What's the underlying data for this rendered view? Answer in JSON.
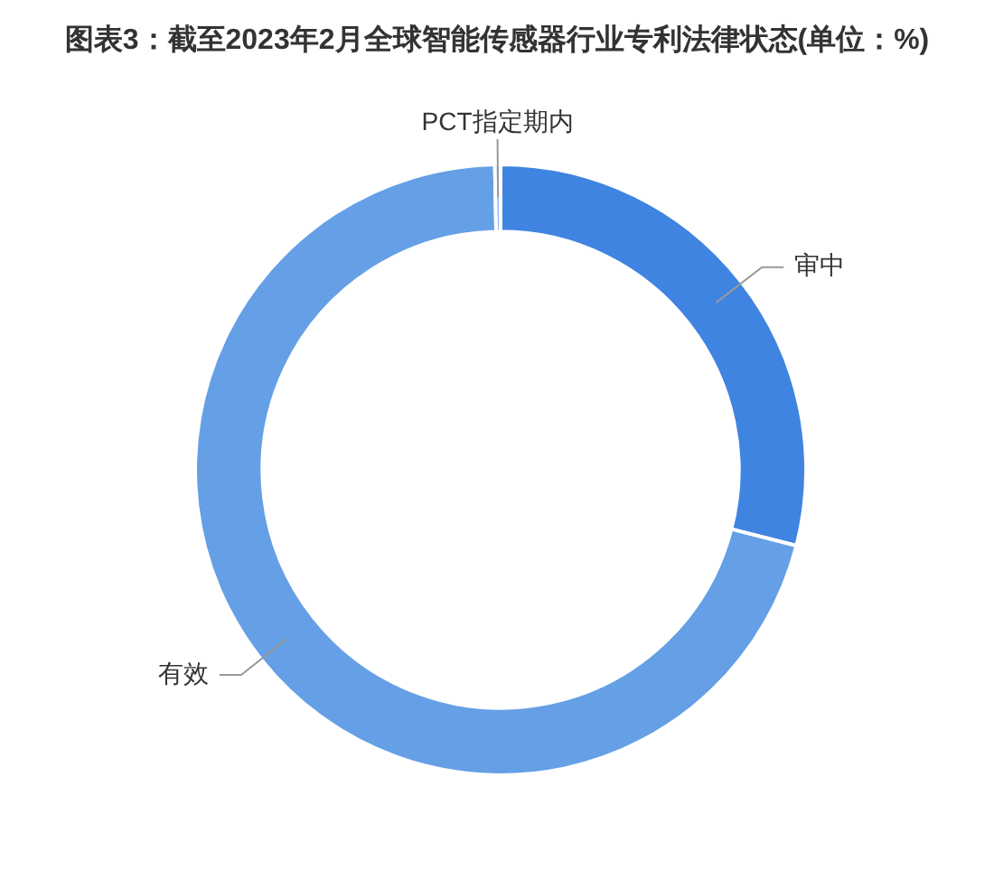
{
  "chart_data": {
    "type": "donut",
    "title": "图表3：截至2023年2月全球智能传感器行业专利法律状态(单位：%)",
    "categories": [
      "审中",
      "有效",
      "PCT指定期内"
    ],
    "values": [
      29.0,
      70.7,
      0.3
    ],
    "colors": [
      "#3f84e0",
      "#659fe6",
      "#8db8ee"
    ]
  }
}
